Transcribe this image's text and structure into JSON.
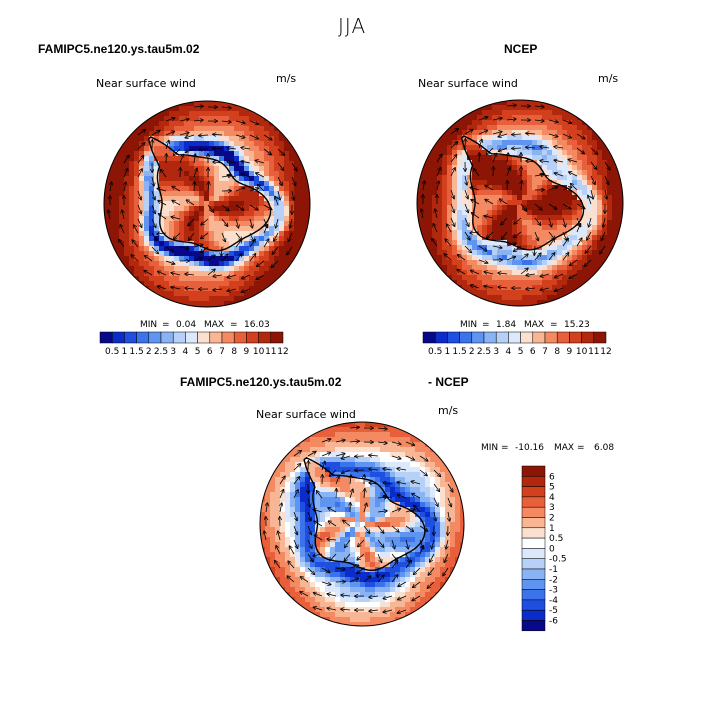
{
  "title": "JJA",
  "panels": [
    {
      "case": "FAMIPC5.ne120.ys.tau5m.02",
      "field": "Near surface wind",
      "units": "m/s",
      "stats": {
        "min": "0.04",
        "max": "16.03"
      },
      "min_label": "MIN =",
      "max_label": "MAX =",
      "colorbar_levels": [
        "0.5",
        "1",
        "1.5",
        "2",
        "2.5",
        "3",
        "4",
        "5",
        "6",
        "7",
        "8",
        "9",
        "10",
        "11",
        "12"
      ]
    },
    {
      "case": "NCEP",
      "field": "Near surface wind",
      "units": "m/s",
      "stats": {
        "min": "1.84",
        "max": "15.23"
      },
      "min_label": "MIN =",
      "max_label": "MAX =",
      "colorbar_levels": [
        "0.5",
        "1",
        "1.5",
        "2",
        "2.5",
        "3",
        "4",
        "5",
        "6",
        "7",
        "8",
        "9",
        "10",
        "11",
        "12"
      ]
    },
    {
      "case_left": "FAMIPC5.ne120.ys.tau5m.02",
      "case_right": "- NCEP",
      "field": "Near surface wind",
      "units": "m/s",
      "stats": {
        "min": "-10.16",
        "max": "6.08"
      },
      "min_label": "MIN =",
      "max_label": "MAX =",
      "colorbar_levels": [
        "6",
        "5",
        "4",
        "3",
        "2",
        "1",
        "0.5",
        "0",
        "-0.5",
        "-1",
        "-2",
        "-3",
        "-4",
        "-5",
        "-6"
      ]
    }
  ],
  "colors": {
    "abs_palette": [
      "#08088a",
      "#0c2cc9",
      "#1e4fe0",
      "#3b73ea",
      "#5f95f0",
      "#8ab3f4",
      "#b6d0f8",
      "#dce8fb",
      "#fce0cf",
      "#f9b694",
      "#f38a62",
      "#e8603b",
      "#d2401d",
      "#b2280e",
      "#8c1505"
    ],
    "diff_palette": [
      "#8c1505",
      "#b2280e",
      "#d2401d",
      "#e8603b",
      "#f38a62",
      "#f9b694",
      "#fce0cf",
      "#ffffff",
      "#dce8fb",
      "#b6d0f8",
      "#8ab3f4",
      "#5f95f0",
      "#3b73ea",
      "#1e4fe0",
      "#0c2cc9",
      "#08088a"
    ]
  },
  "chart_data": [
    {
      "type": "heatmap",
      "projection": "south-polar-stereographic",
      "title": "FAMIPC5.ne120.ys.tau5m.02",
      "field": "Near surface wind",
      "units": "m/s",
      "min": 0.04,
      "max": 16.03,
      "levels": [
        0.5,
        1,
        1.5,
        2,
        2.5,
        3,
        4,
        5,
        6,
        7,
        8,
        9,
        10,
        11,
        12
      ]
    },
    {
      "type": "heatmap",
      "projection": "south-polar-stereographic",
      "title": "NCEP",
      "field": "Near surface wind",
      "units": "m/s",
      "min": 1.84,
      "max": 15.23,
      "levels": [
        0.5,
        1,
        1.5,
        2,
        2.5,
        3,
        4,
        5,
        6,
        7,
        8,
        9,
        10,
        11,
        12
      ]
    },
    {
      "type": "heatmap",
      "projection": "south-polar-stereographic",
      "title": "FAMIPC5.ne120.ys.tau5m.02 - NCEP",
      "field": "Near surface wind",
      "units": "m/s",
      "min": -10.16,
      "max": 6.08,
      "levels": [
        -6,
        -5,
        -4,
        -3,
        -2,
        -1,
        -0.5,
        0,
        0.5,
        1,
        2,
        3,
        4,
        5,
        6
      ]
    }
  ]
}
